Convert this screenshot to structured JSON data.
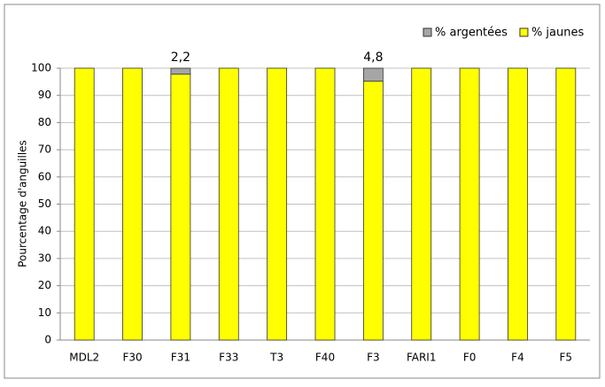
{
  "chart_data": {
    "type": "stacked-bar",
    "y_label": "Pourcentage d'anguilles",
    "categories": [
      "MDL2",
      "F30",
      "F31",
      "F33",
      "T3",
      "F40",
      "F3",
      "FARI1",
      "F0",
      "F4",
      "F5"
    ],
    "series": [
      {
        "name": "% jaunes",
        "color": "#ffff00",
        "values": [
          100,
          100,
          97.8,
          100,
          100,
          100,
          95.2,
          100,
          100,
          100,
          100
        ]
      },
      {
        "name": "% argentées",
        "color": "#a6a6a6",
        "values": [
          0,
          0,
          2.2,
          0,
          0,
          0,
          4.8,
          0,
          0,
          0,
          0
        ],
        "value_labels": [
          null,
          null,
          "2,2",
          null,
          null,
          null,
          "4,8",
          null,
          null,
          null,
          null
        ]
      }
    ],
    "ylim": [
      0,
      100
    ],
    "yticks": [
      0,
      10,
      20,
      30,
      40,
      50,
      60,
      70,
      80,
      90,
      100
    ],
    "grid": true
  }
}
